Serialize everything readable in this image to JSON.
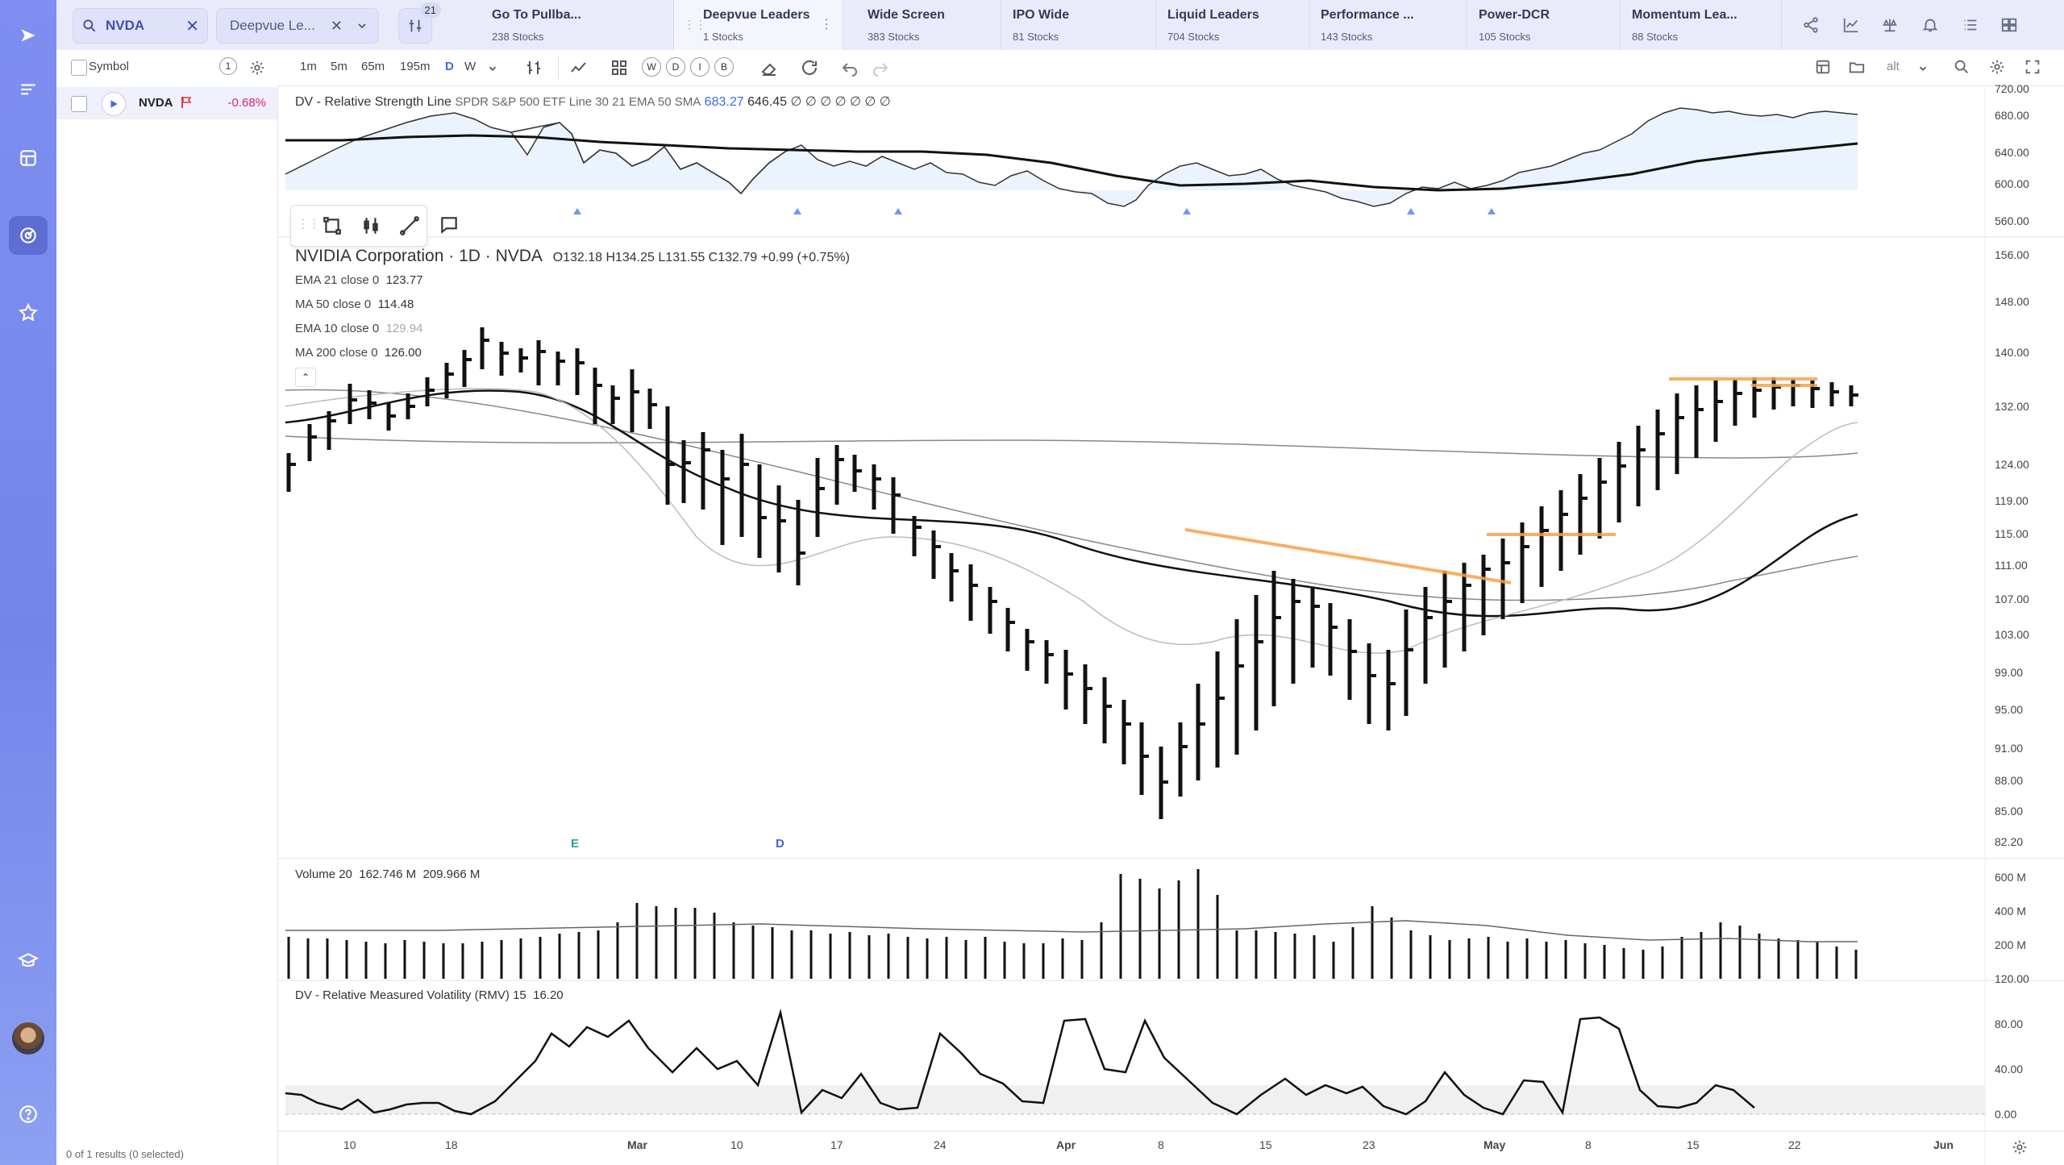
{
  "search": {
    "value": "NVDA"
  },
  "watchlist_select": {
    "value": "Deepvue Le..."
  },
  "filter_badge": "21",
  "screen_tabs": [
    {
      "label": "Go To Pullba...",
      "count": "238 Stocks"
    },
    {
      "label": "Deepvue Leaders",
      "count": "1 Stocks"
    },
    {
      "label": "Wide Screen",
      "count": "383 Stocks"
    },
    {
      "label": "IPO Wide",
      "count": "81 Stocks"
    },
    {
      "label": "Liquid Leaders",
      "count": "704 Stocks"
    },
    {
      "label": "Performance ...",
      "count": "143 Stocks"
    },
    {
      "label": "Power-DCR",
      "count": "105 Stocks"
    },
    {
      "label": "Momentum Lea...",
      "count": "88 Stocks"
    }
  ],
  "toolbar": {
    "symbol_header": "Symbol",
    "symbol_count": "1",
    "intervals": [
      "1m",
      "5m",
      "65m",
      "195m",
      "D",
      "W"
    ],
    "period_buttons": [
      "W",
      "D",
      "I",
      "B"
    ],
    "alt_label": "alt"
  },
  "watch_row": {
    "symbol": "NVDA",
    "change": "-0.68%"
  },
  "footer_status": "0 of 1 results (0 selected)",
  "rs_panel": {
    "label": "DV - Relative Strength Line",
    "params": "SPDR S&P 500 ETF Line 30 21 EMA 50 SMA",
    "value_blue": "683.27",
    "value_dark": "646.45",
    "null_marks": "∅ ∅ ∅ ∅ ∅ ∅ ∅",
    "axis": [
      "720.00",
      "680.00",
      "640.00",
      "600.00",
      "560.00"
    ]
  },
  "price_panel": {
    "title": "NVIDIA Corporation · 1D · NVDA",
    "ohlc": "O132.18  H134.25  L131.55  C132.79  +0.99 (+0.75%)",
    "studies": [
      {
        "name": "EMA 21 close 0",
        "value": "123.77"
      },
      {
        "name": "MA 50 close 0",
        "value": "114.48"
      },
      {
        "name": "EMA 10 close 0",
        "value": "129.94"
      },
      {
        "name": "MA 200 close 0",
        "value": "126.00"
      }
    ],
    "axis": [
      "156.00",
      "148.00",
      "140.00",
      "132.00",
      "124.00",
      "119.00",
      "115.00",
      "111.00",
      "107.00",
      "103.00",
      "99.00",
      "95.00",
      "91.00",
      "88.00",
      "85.00",
      "82.20"
    ],
    "markers": [
      "E",
      "D"
    ]
  },
  "volume_panel": {
    "label": "Volume 20",
    "v1": "162.746 M",
    "v2": "209.966 M",
    "axis": [
      "600 M",
      "400 M",
      "200 M"
    ]
  },
  "rmv_panel": {
    "label": "DV - Relative Measured Volatility (RMV) 15",
    "value": "16.20",
    "axis": [
      "120.00",
      "80.00",
      "40.00",
      "0.00"
    ]
  },
  "date_axis": [
    "10",
    "18",
    "Mar",
    "10",
    "17",
    "24",
    "Apr",
    "8",
    "15",
    "23",
    "May",
    "8",
    "15",
    "22",
    "Jun"
  ],
  "colors": {
    "rail": "#7f8ef0",
    "accent": "#3d6be0",
    "negative": "#e0237a",
    "resistance": "#f6a24a",
    "rs_fill": "#8fc3f5"
  }
}
